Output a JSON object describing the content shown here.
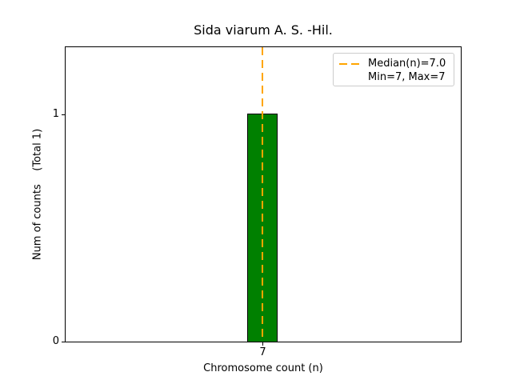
{
  "chart_data": {
    "type": "bar",
    "title": "Sida viarum A. S. -Hil.",
    "xlabel": "Chromosome count (n)",
    "ylabel": "Num of counts    (Total 1)",
    "categories": [
      7
    ],
    "values": [
      1
    ],
    "xticks": [
      7
    ],
    "yticks": [
      0,
      1
    ],
    "ylim": [
      0,
      1.3
    ],
    "grid": false,
    "bar_color": "#008000",
    "bar_edge_color": "#000000",
    "median_line": {
      "x": 7,
      "style": "dashed",
      "color": "#FFA500",
      "label": "Median(n)=7.0"
    },
    "legend": {
      "position": "upper right",
      "entries": [
        {
          "label": "Median(n)=7.0",
          "marker": "orange-dashed-line"
        },
        {
          "label": "Min=7, Max=7",
          "marker": "none"
        }
      ]
    },
    "stats_note": "Min=7, Max=7, Median=7.0, Total counts=1"
  }
}
